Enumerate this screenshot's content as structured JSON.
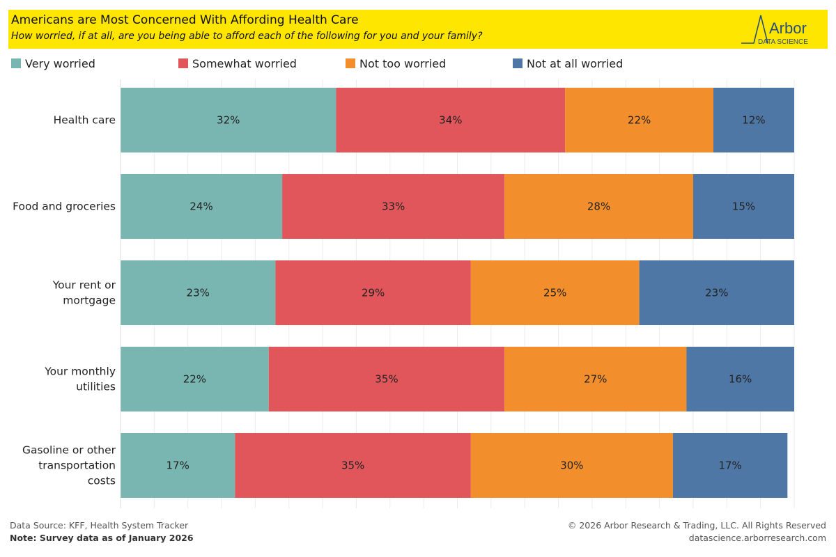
{
  "header": {
    "title": "Americans are Most Concerned With Affording Health Care",
    "subtitle": "How worried, if at all, are you being able to afford each of the following for you and your family?",
    "brand_name": "Arbor",
    "brand_tagline": "DATA SCIENCE",
    "background_color": "#ffe600"
  },
  "chart_data": {
    "type": "bar",
    "orientation": "horizontal",
    "stacked": true,
    "categories": [
      [
        "Health care"
      ],
      [
        "Food and groceries"
      ],
      [
        "Your rent or",
        "mortgage"
      ],
      [
        "Your monthly",
        "utilities"
      ],
      [
        "Gasoline or other",
        "transportation",
        "costs"
      ]
    ],
    "series": [
      {
        "name": "Very worried",
        "color": "#79b6b1",
        "values": [
          32,
          24,
          23,
          22,
          17
        ]
      },
      {
        "name": "Somewhat worried",
        "color": "#e1565a",
        "values": [
          34,
          33,
          29,
          35,
          35
        ]
      },
      {
        "name": "Not too worried",
        "color": "#f28e2c",
        "values": [
          22,
          28,
          25,
          27,
          30
        ]
      },
      {
        "name": "Not at all worried",
        "color": "#4e77a5",
        "values": [
          12,
          15,
          23,
          16,
          17
        ]
      }
    ],
    "value_suffix": "%",
    "xlim": [
      0,
      100
    ],
    "grid": true,
    "legend_position": "top"
  },
  "footer": {
    "source": "Data Source: KFF, Health System Tracker",
    "note": "Note: Survey data as of January 2026",
    "copyright": "© 2026 Arbor Research & Trading, LLC. All Rights Reserved",
    "website": "datascience.arborresearch.com"
  }
}
